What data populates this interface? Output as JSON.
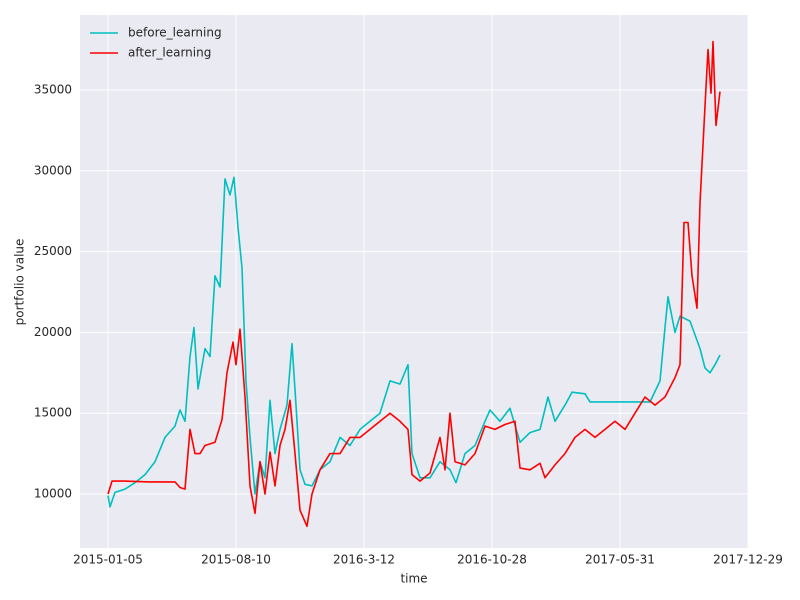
{
  "chart_data": {
    "type": "line",
    "xlabel": "time",
    "ylabel": "portfolio value",
    "xlim": [
      -28,
      640
    ],
    "ylim": [
      6658,
      39641
    ],
    "xticks": [
      {
        "value": 0,
        "label": "2015-01-05"
      },
      {
        "value": 128,
        "label": "2015-08-10"
      },
      {
        "value": 256,
        "label": "2016-3-12"
      },
      {
        "value": 384,
        "label": "2016-10-28"
      },
      {
        "value": 512,
        "label": "2017-05-31"
      },
      {
        "value": 640,
        "label": "2017-12-29"
      }
    ],
    "yticks": [
      10000,
      15000,
      20000,
      25000,
      30000,
      35000
    ],
    "grid": true,
    "legend": "upper left",
    "series": [
      {
        "name": "before_learning",
        "color": "#00bfbf",
        "x": [
          0,
          2,
          7,
          17,
          27,
          37,
          47,
          57,
          67,
          72,
          77,
          82,
          86,
          90,
          97,
          102,
          107,
          112,
          117,
          122,
          126,
          130,
          134,
          138,
          142,
          147,
          152,
          157,
          162,
          167,
          172,
          179,
          184,
          188,
          192,
          197,
          204,
          212,
          222,
          232,
          242,
          252,
          262,
          272,
          282,
          292,
          300,
          304,
          312,
          322,
          332,
          342,
          348,
          357,
          367,
          377,
          382,
          392,
          402,
          412,
          422,
          432,
          440,
          447,
          457,
          464,
          477,
          482,
          512,
          542,
          552,
          557,
          560,
          567,
          572,
          582,
          592,
          597,
          602,
          607,
          612
        ],
        "values": [
          9900,
          9200,
          10100,
          10300,
          10700,
          11200,
          12000,
          13500,
          14200,
          15200,
          14500,
          18500,
          20300,
          16500,
          19000,
          18500,
          23500,
          22800,
          29500,
          28500,
          29600,
          26500,
          24000,
          17000,
          13500,
          10000,
          12000,
          11000,
          15800,
          12500,
          14000,
          15500,
          19300,
          15500,
          11500,
          10600,
          10500,
          11500,
          12000,
          13500,
          13000,
          14000,
          14500,
          15000,
          17000,
          16800,
          18000,
          12500,
          11000,
          11000,
          12000,
          11500,
          10700,
          12500,
          13000,
          14500,
          15200,
          14500,
          15300,
          13200,
          13800,
          14000,
          16000,
          14500,
          15500,
          16300,
          16200,
          15700,
          15700,
          15700,
          17000,
          20300,
          22200,
          20000,
          21000,
          20700,
          19000,
          17800,
          17500,
          18000,
          18600
        ]
      },
      {
        "name": "after_learning",
        "color": "#ff0000",
        "x": [
          0,
          4,
          17,
          42,
          67,
          72,
          77,
          82,
          87,
          92,
          97,
          107,
          114,
          119,
          125,
          128,
          132,
          137,
          142,
          147,
          152,
          157,
          162,
          167,
          172,
          177,
          182,
          187,
          192,
          199,
          204,
          212,
          222,
          232,
          242,
          252,
          262,
          272,
          282,
          292,
          300,
          304,
          312,
          322,
          332,
          337,
          342,
          347,
          357,
          367,
          377,
          387,
          397,
          407,
          412,
          422,
          432,
          437,
          447,
          457,
          467,
          477,
          487,
          497,
          507,
          517,
          527,
          537,
          547,
          557,
          567,
          572,
          576,
          580,
          584,
          589,
          592,
          597,
          600,
          603,
          605,
          608,
          612
        ],
        "values": [
          10000,
          10800,
          10800,
          10750,
          10750,
          10400,
          10300,
          14000,
          12500,
          12500,
          13000,
          13200,
          14600,
          17500,
          19400,
          18000,
          20200,
          16000,
          10500,
          8800,
          12000,
          10000,
          12600,
          10500,
          13000,
          14000,
          15800,
          12500,
          9000,
          8000,
          10000,
          11500,
          12500,
          12500,
          13500,
          13500,
          14000,
          14500,
          15000,
          14500,
          14000,
          11200,
          10800,
          11300,
          13500,
          11500,
          15000,
          12000,
          11800,
          12500,
          14200,
          14000,
          14300,
          14500,
          11600,
          11500,
          11900,
          11000,
          11800,
          12500,
          13500,
          14000,
          13500,
          14000,
          14500,
          14000,
          15000,
          16000,
          15500,
          16000,
          17200,
          18000,
          26800,
          26800,
          23500,
          21500,
          28000,
          34000,
          37500,
          34800,
          38000,
          32800,
          34900
        ]
      }
    ]
  }
}
